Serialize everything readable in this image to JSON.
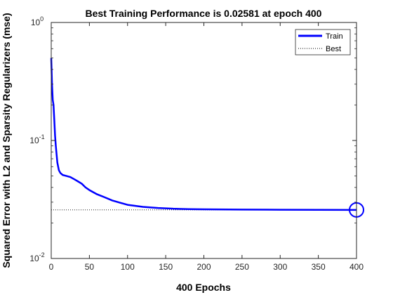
{
  "chart_data": {
    "type": "line",
    "title": "Best Training Performance is 0.02581 at epoch 400",
    "xlabel": "400 Epochs",
    "ylabel": "Squared Error with L2 and Sparsity Regularizers  (mse)",
    "xlim": [
      0,
      400
    ],
    "ylim": [
      0.01,
      1
    ],
    "yscale": "log",
    "xticks": [
      0,
      50,
      100,
      150,
      200,
      250,
      300,
      350,
      400
    ],
    "yticks": [
      {
        "value": 0.01,
        "base": "10",
        "exp": "-2"
      },
      {
        "value": 0.1,
        "base": "10",
        "exp": "-1"
      },
      {
        "value": 1,
        "base": "10",
        "exp": "0"
      }
    ],
    "grid": false,
    "legend": {
      "placement": "top-right"
    },
    "series": [
      {
        "name": "Train",
        "color": "#0000ff",
        "x": [
          0,
          1,
          2,
          3,
          4,
          5,
          6,
          8,
          10,
          12,
          15,
          20,
          25,
          30,
          35,
          40,
          45,
          50,
          60,
          70,
          80,
          90,
          100,
          120,
          140,
          160,
          180,
          200,
          250,
          300,
          350,
          400
        ],
        "y": [
          0.5,
          0.3,
          0.22,
          0.2,
          0.15,
          0.11,
          0.09,
          0.065,
          0.056,
          0.053,
          0.051,
          0.05,
          0.049,
          0.047,
          0.045,
          0.043,
          0.04,
          0.038,
          0.035,
          0.033,
          0.031,
          0.0297,
          0.0285,
          0.0274,
          0.0268,
          0.0264,
          0.0262,
          0.0261,
          0.02595,
          0.02588,
          0.02584,
          0.02581
        ]
      }
    ],
    "best": {
      "name": "Best",
      "epoch": 400,
      "value": 0.02581
    }
  }
}
